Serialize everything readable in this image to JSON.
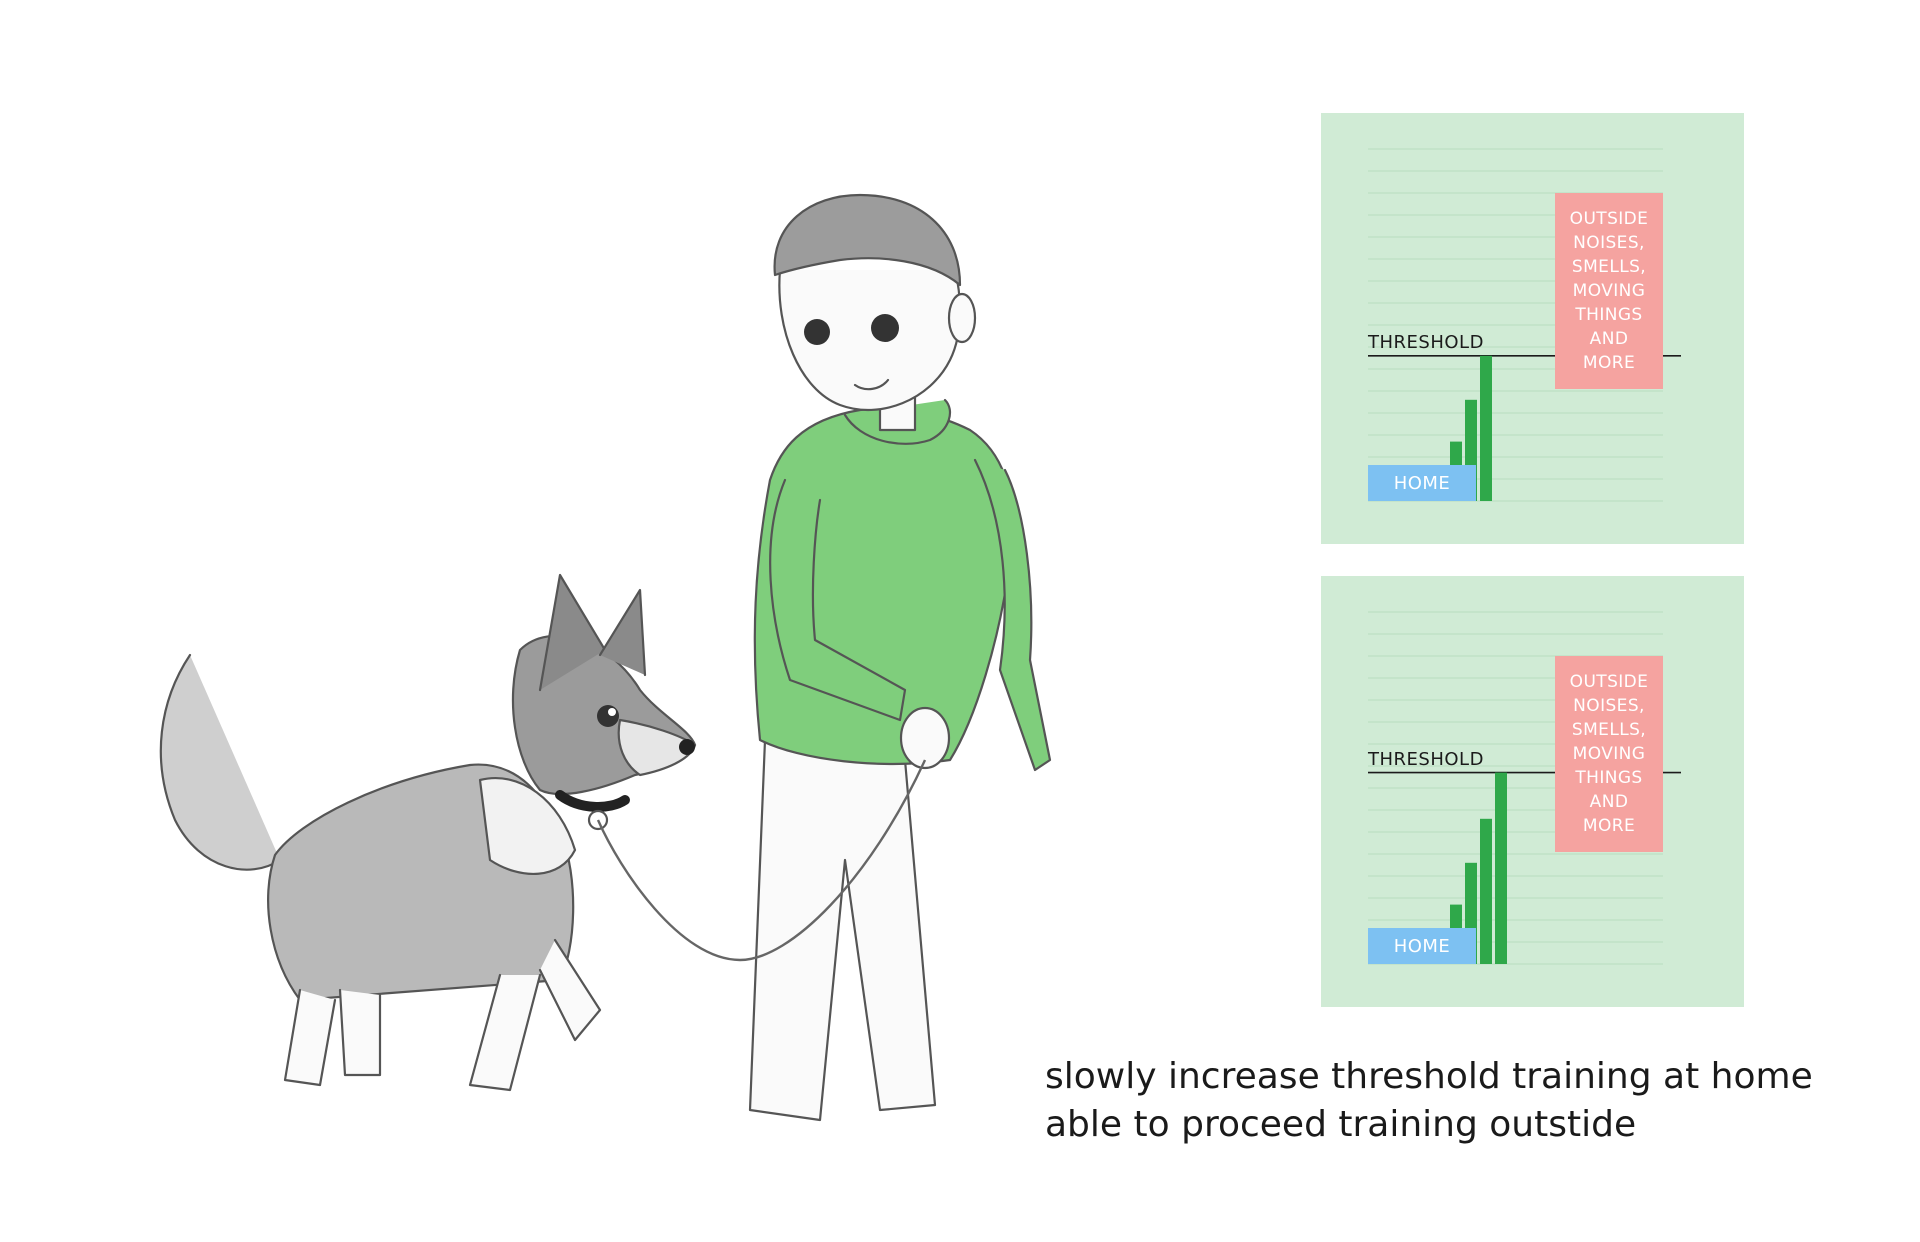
{
  "colors": {
    "panel_background": "#d0ebd5",
    "ruled_lines": "#b9dcc0",
    "bars": "#2fa84a",
    "home_label_background": "#7dc1f2",
    "outside_box_background": "#f5a3a0",
    "threshold_line": "#1b1b1b",
    "hoodie": "#7fce7c"
  },
  "illustration": {
    "figures": [
      "person-in-green-hoodie",
      "german-shepherd-puppy",
      "leash"
    ]
  },
  "panels": [
    {
      "threshold_label": "THRESHOLD",
      "home_label": "HOME",
      "outside_lines": [
        "OUTSIDE",
        "NOISES,",
        "SMELLS,",
        "MOVING",
        "THINGS",
        "AND",
        "MORE"
      ]
    },
    {
      "threshold_label": "THRESHOLD",
      "home_label": "HOME",
      "outside_lines": [
        "OUTSIDE",
        "NOISES,",
        "SMELLS,",
        "MOVING",
        "THINGS",
        "AND",
        "MORE"
      ]
    }
  ],
  "chart_data": [
    {
      "type": "bar",
      "categories": [
        "1",
        "2",
        "3"
      ],
      "values": [
        2.7,
        4.6,
        6.6
      ],
      "threshold": 6.6,
      "ylim": [
        0,
        16
      ],
      "grid": true
    },
    {
      "type": "bar",
      "categories": [
        "1",
        "2",
        "3",
        "4"
      ],
      "values": [
        2.7,
        4.6,
        6.6,
        8.7
      ],
      "threshold": 8.7,
      "ylim": [
        0,
        16
      ],
      "grid": true
    }
  ],
  "caption": {
    "line1": "slowly increase threshold training at home",
    "line2": "able to proceed training outstide"
  }
}
